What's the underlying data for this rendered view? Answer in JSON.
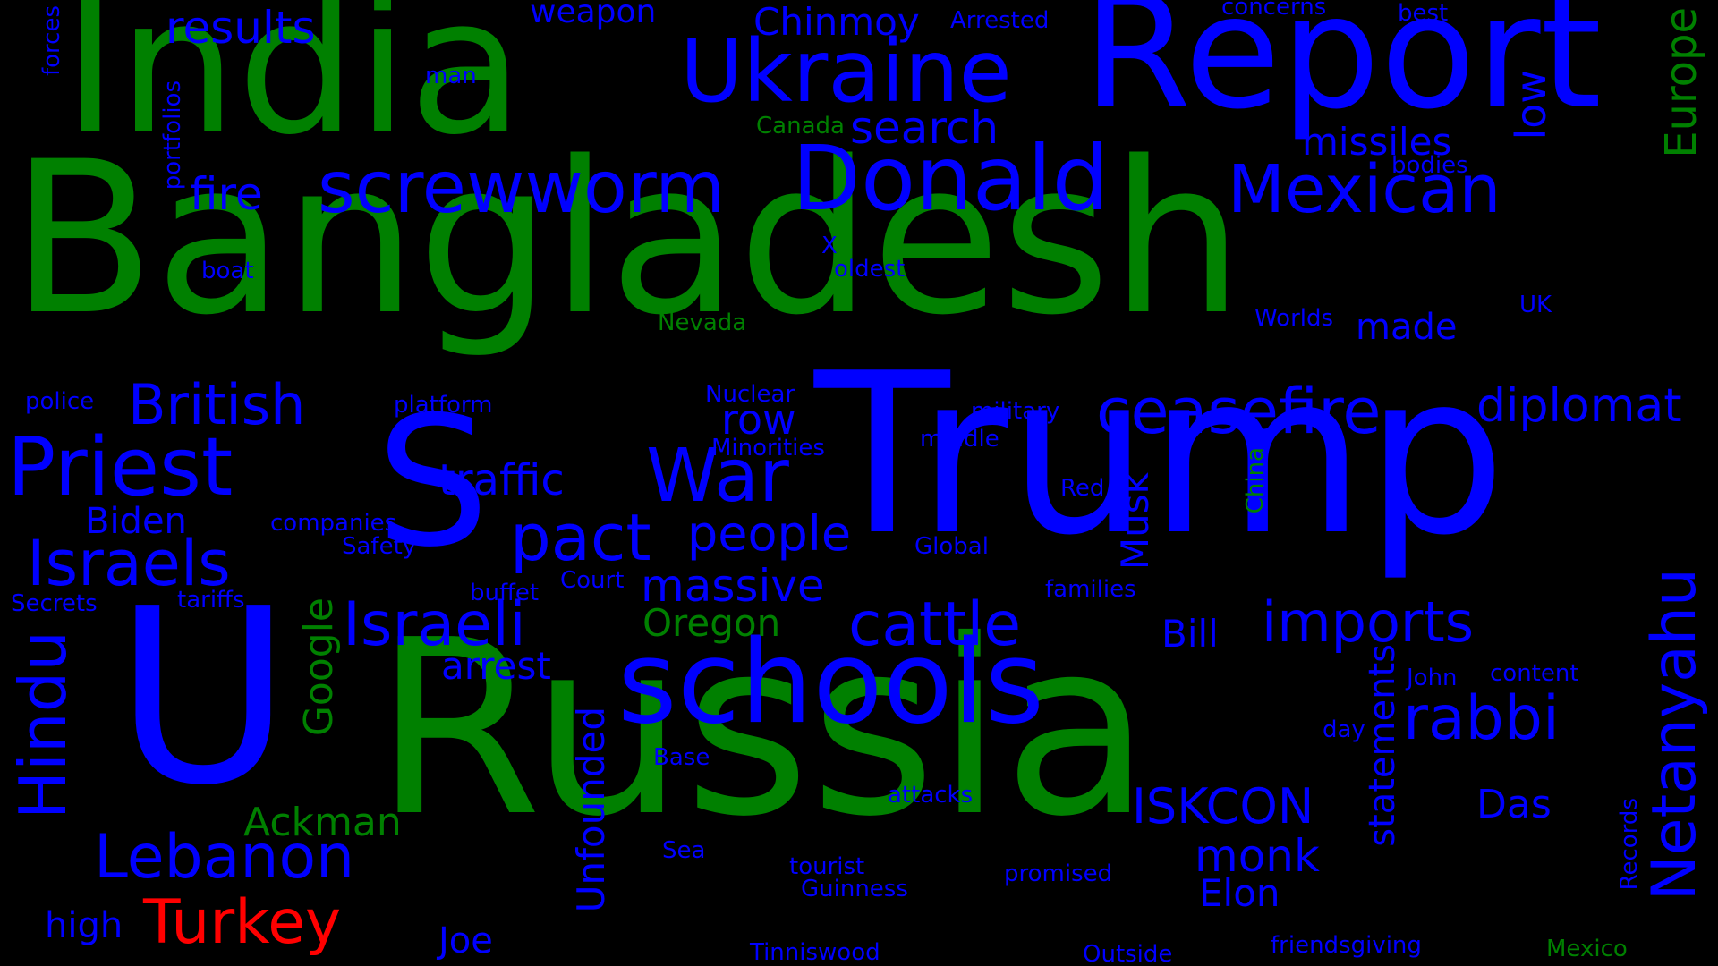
{
  "colors": {
    "background": "#000000",
    "green": "#008000",
    "blue": "#0000ff",
    "red": "#ff0000"
  },
  "words": {
    "bangladesh": "Bangladesh",
    "russia": "Russia",
    "trump": "Trump",
    "india": "India",
    "report": "Report",
    "u": "U",
    "s": "S",
    "schools": "schools",
    "ukraine": "Ukraine",
    "donald": "Donald",
    "screwworm": "screwworm",
    "mexican": "Mexican",
    "priest": "Priest",
    "ceasefire": "ceasefire",
    "diplomat": "diplomat",
    "war": "War",
    "pact": "pact",
    "israels": "Israels",
    "israeli": "Israeli",
    "cattle": "cattle",
    "imports": "imports",
    "rabbi": "rabbi",
    "netanyahu": "Netanyahu",
    "hindu": "Hindu",
    "lebanon": "Lebanon",
    "turkey": "Turkey",
    "british": "British",
    "people": "people",
    "massive": "massive",
    "iskcon": "ISKCON",
    "monk": "monk",
    "traffic": "traffic",
    "search": "search",
    "fire": "fire",
    "results": "results",
    "missiles": "missiles",
    "europe": "Europe",
    "low": "low",
    "ackman": "Ackman",
    "google": "Google",
    "unfounded": "Unfounded",
    "statements": "statements",
    "das": "Das",
    "elon": "Elon",
    "musk": "Musk",
    "bill": "Bill",
    "oregon": "Oregon",
    "arrest": "arrest",
    "row": "row",
    "made": "made",
    "biden": "Biden",
    "joe": "Joe",
    "high": "high",
    "weapon": "weapon",
    "chinmoy": "Chinmoy",
    "arrested": "Arrested",
    "concerns": "concerns",
    "best": "best",
    "man": "man",
    "forces": "forces",
    "portfolios": "portfolios",
    "canada": "Canada",
    "bodies": "bodies",
    "x": "X",
    "oldest": "oldest",
    "boat": "boat",
    "nevada": "Nevada",
    "worlds": "Worlds",
    "uk": "UK",
    "police": "police",
    "platform": "platform",
    "nuclear": "Nuclear",
    "military": "military",
    "minorities": "Minorities",
    "middle": "middle",
    "red": "Red",
    "china": "China",
    "global": "Global",
    "companies": "companies",
    "safety": "Safety",
    "court": "Court",
    "families": "families",
    "secrets": "Secrets",
    "tariffs": "tariffs",
    "buffet": "buffet",
    "john": "John",
    "content": "content",
    "day": "day",
    "base": "Base",
    "attacks": "attacks",
    "sea": "Sea",
    "tourist": "tourist",
    "guinness": "Guinness",
    "promised": "promised",
    "records": "Records",
    "tinniswood": "Tinniswood",
    "outside": "Outside",
    "friendsgiving": "friendsgiving",
    "mexico": "Mexico"
  }
}
